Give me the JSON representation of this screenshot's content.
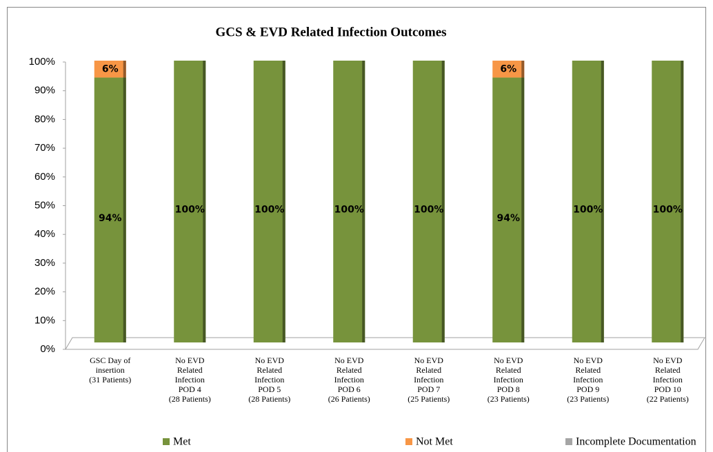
{
  "chart_data": {
    "type": "stacked_bar",
    "title": "GCS & EVD Related Infection Outcomes",
    "categories": [
      [
        "GSC Day of",
        "insertion",
        "(31 Patients)"
      ],
      [
        "No EVD",
        "Related",
        "Infection",
        "POD 4",
        "(28 Patients)"
      ],
      [
        "No EVD",
        "Related",
        "Infection",
        "POD 5",
        "(28 Patients)"
      ],
      [
        "No EVD",
        "Related",
        "Infection",
        "POD 6",
        "(26 Patients)"
      ],
      [
        "No EVD",
        "Related",
        "Infection",
        "POD 7",
        "(25 Patients)"
      ],
      [
        "No EVD",
        "Related",
        "Infection",
        "POD 8",
        "(23 Patients)"
      ],
      [
        "No EVD",
        "Related",
        "Infection",
        "POD 9",
        "(23 Patients)"
      ],
      [
        "No EVD",
        "Related",
        "Infection",
        "POD 10",
        "(22 Patients)"
      ]
    ],
    "series": [
      {
        "name": "Met",
        "color": "#77933c",
        "values": [
          94,
          100,
          100,
          100,
          100,
          94,
          100,
          100
        ],
        "value_labels": [
          "94%",
          "100%",
          "100%",
          "100%",
          "100%",
          "94%",
          "100%",
          "100%"
        ]
      },
      {
        "name": "Not Met",
        "color": "#f79646",
        "values": [
          6,
          0,
          0,
          0,
          0,
          6,
          0,
          0
        ],
        "value_labels": [
          "6%",
          null,
          null,
          null,
          null,
          "6%",
          null,
          null
        ]
      },
      {
        "name": "Incomplete Documentation",
        "color": "#a5a5a5",
        "values": [
          0,
          0,
          0,
          0,
          0,
          0,
          0,
          0
        ]
      }
    ],
    "ylim": [
      0,
      100
    ],
    "yticks": [
      {
        "value": 0,
        "label": "0%"
      },
      {
        "value": 10,
        "label": "10%"
      },
      {
        "value": 20,
        "label": "20%"
      },
      {
        "value": 30,
        "label": "30%"
      },
      {
        "value": 40,
        "label": "40%"
      },
      {
        "value": 50,
        "label": "50%"
      },
      {
        "value": 60,
        "label": "60%"
      },
      {
        "value": 70,
        "label": "70%"
      },
      {
        "value": 80,
        "label": "80%"
      },
      {
        "value": 90,
        "label": "90%"
      },
      {
        "value": 100,
        "label": "100%"
      }
    ],
    "legend": "bottom"
  }
}
